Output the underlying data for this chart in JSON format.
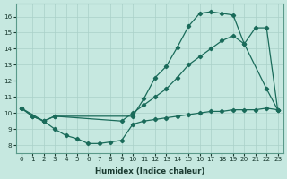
{
  "xlabel": "Humidex (Indice chaleur)",
  "background_color": "#c6e8e0",
  "grid_color": "#aad0c8",
  "line_color": "#1a6b5a",
  "xlim": [
    -0.5,
    23.5
  ],
  "ylim": [
    7.5,
    16.8
  ],
  "xticks": [
    0,
    1,
    2,
    3,
    4,
    5,
    6,
    7,
    8,
    9,
    10,
    11,
    12,
    13,
    14,
    15,
    16,
    17,
    18,
    19,
    20,
    21,
    22,
    23
  ],
  "yticks": [
    8,
    9,
    10,
    11,
    12,
    13,
    14,
    15,
    16
  ],
  "series": [
    {
      "x": [
        0,
        1,
        2,
        3,
        10,
        11,
        12,
        13,
        14,
        15,
        16,
        17,
        18,
        19,
        20,
        22,
        23
      ],
      "y": [
        10.3,
        9.8,
        9.5,
        9.8,
        9.8,
        10.9,
        12.2,
        12.9,
        14.1,
        15.4,
        16.2,
        16.3,
        16.2,
        16.1,
        14.3,
        11.5,
        10.2
      ]
    },
    {
      "x": [
        0,
        2,
        3,
        9,
        10,
        11,
        12,
        13,
        14,
        15,
        16,
        17,
        18,
        19,
        20,
        21,
        22,
        23
      ],
      "y": [
        10.3,
        9.5,
        9.8,
        9.5,
        10.0,
        10.5,
        11.0,
        11.5,
        12.2,
        13.0,
        13.5,
        14.0,
        14.5,
        14.8,
        14.3,
        15.3,
        15.3,
        10.2
      ]
    },
    {
      "x": [
        0,
        1,
        2,
        3,
        4,
        5,
        6,
        7,
        8,
        9,
        10,
        11,
        12,
        13,
        14,
        15,
        16,
        17,
        18,
        19,
        20,
        21,
        22,
        23
      ],
      "y": [
        10.3,
        9.8,
        9.5,
        9.0,
        8.6,
        8.4,
        8.1,
        8.1,
        8.2,
        8.3,
        9.3,
        9.5,
        9.6,
        9.7,
        9.8,
        9.9,
        10.0,
        10.1,
        10.1,
        10.2,
        10.2,
        10.2,
        10.3,
        10.2
      ]
    }
  ]
}
